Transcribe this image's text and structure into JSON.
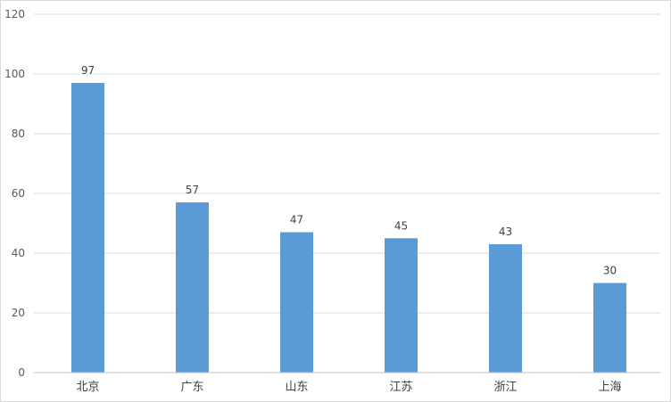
{
  "chart_data": {
    "type": "bar",
    "categories": [
      "北京",
      "广东",
      "山东",
      "江苏",
      "浙江",
      "上海"
    ],
    "values": [
      97,
      57,
      47,
      45,
      43,
      30
    ],
    "title": "",
    "xlabel": "",
    "ylabel": "",
    "ylim": [
      0,
      120
    ],
    "yticks": [
      0,
      20,
      40,
      60,
      80,
      100,
      120
    ],
    "grid": true,
    "legend": "none",
    "bar_color": "#5b9bd5",
    "data_labels": true
  }
}
